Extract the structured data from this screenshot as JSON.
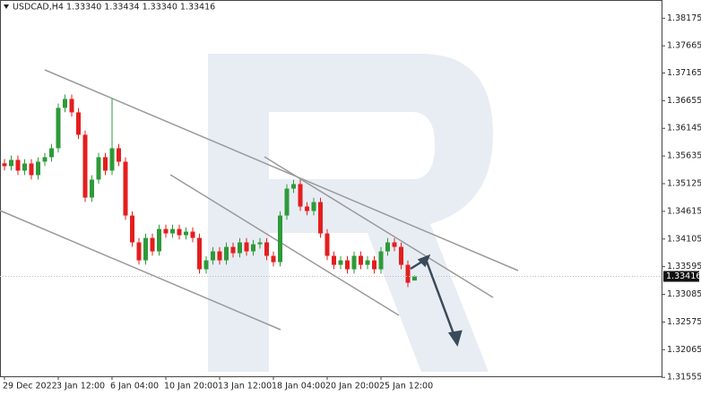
{
  "chart_data": {
    "type": "candlestick",
    "title": "USDCAD,H4  1.33340 1.33434 1.33340 1.33416",
    "categories": [
      "29 Dec 2022",
      null,
      null,
      null,
      null,
      null,
      null,
      null,
      "3 Jan 12:00",
      null,
      null,
      null,
      null,
      null,
      null,
      null,
      "6 Jan 04:00",
      null,
      null,
      null,
      null,
      null,
      null,
      null,
      "10 Jan 20:00",
      null,
      null,
      null,
      null,
      null,
      null,
      null,
      "13 Jan 12:00",
      null,
      null,
      null,
      null,
      null,
      null,
      null,
      "18 Jan 04:00",
      null,
      null,
      null,
      null,
      null,
      null,
      null,
      "20 Jan 20:00",
      null,
      null,
      null,
      null,
      null,
      null,
      null,
      "25 Jan 12:00",
      null,
      null,
      null,
      null,
      null
    ],
    "open": [
      1.355,
      1.35448,
      1.35563,
      1.35365,
      1.35497,
      1.35282,
      1.3553,
      1.35613,
      1.35778,
      1.36522,
      1.36687,
      1.36439,
      1.36026,
      1.34869,
      1.352,
      1.35613,
      1.35365,
      1.35778,
      1.3553,
      1.34538,
      1.34043,
      1.33712,
      1.34125,
      1.33877,
      1.3429,
      1.34208,
      1.3429,
      1.34175,
      1.34241,
      1.34125,
      1.33547,
      1.33712,
      1.33877,
      1.33712,
      1.3396,
      1.33844,
      1.34043,
      1.33877,
      1.34009,
      1.34043,
      1.33795,
      1.33679,
      1.34538,
      1.35034,
      1.35117,
      1.34704,
      1.34621,
      1.34786,
      1.34208,
      1.33795,
      1.33629,
      1.33712,
      1.33547,
      1.33795,
      1.33629,
      1.33712,
      1.33547,
      1.33877,
      1.34043,
      1.3396,
      1.33629,
      1.3334
    ],
    "high": [
      1.3558,
      1.35643,
      1.35643,
      1.35577,
      1.35577,
      1.3561,
      1.35693,
      1.35858,
      1.36602,
      1.36767,
      1.36767,
      1.36519,
      1.36106,
      1.3528,
      1.35693,
      1.35693,
      1.3669,
      1.35858,
      1.3561,
      1.34618,
      1.34123,
      1.34205,
      1.34205,
      1.3437,
      1.3437,
      1.3437,
      1.3437,
      1.34321,
      1.34321,
      1.34205,
      1.33792,
      1.33957,
      1.33957,
      1.3404,
      1.3404,
      1.34123,
      1.34123,
      1.34089,
      1.34123,
      1.34123,
      1.33875,
      1.34618,
      1.35114,
      1.35197,
      1.35197,
      1.34784,
      1.34866,
      1.34866,
      1.34288,
      1.33875,
      1.33792,
      1.33792,
      1.33875,
      1.33875,
      1.33792,
      1.33792,
      1.33957,
      1.34123,
      1.34123,
      1.3404,
      1.33709,
      1.33434
    ],
    "low": [
      1.35368,
      1.35368,
      1.35285,
      1.35285,
      1.35202,
      1.35202,
      1.3545,
      1.35533,
      1.35698,
      1.36442,
      1.36359,
      1.35946,
      1.34789,
      1.34789,
      1.3512,
      1.35285,
      1.35285,
      1.3545,
      1.34458,
      1.33963,
      1.33632,
      1.33632,
      1.33797,
      1.33797,
      1.34128,
      1.34128,
      1.34095,
      1.34095,
      1.34045,
      1.33467,
      1.33467,
      1.33632,
      1.33632,
      1.33632,
      1.33764,
      1.33764,
      1.33797,
      1.33797,
      1.33929,
      1.33715,
      1.33599,
      1.33599,
      1.34458,
      1.34954,
      1.34624,
      1.34541,
      1.34541,
      1.34128,
      1.33715,
      1.33549,
      1.33549,
      1.33467,
      1.33467,
      1.33549,
      1.33549,
      1.33467,
      1.33467,
      1.33797,
      1.3388,
      1.33549,
      1.33219,
      1.3334
    ],
    "close": [
      1.35448,
      1.35563,
      1.35365,
      1.35497,
      1.35282,
      1.3553,
      1.35613,
      1.35778,
      1.36522,
      1.36687,
      1.36439,
      1.36026,
      1.34869,
      1.352,
      1.35613,
      1.35365,
      1.35778,
      1.3553,
      1.34538,
      1.34043,
      1.33712,
      1.34125,
      1.33877,
      1.3429,
      1.34208,
      1.3429,
      1.34175,
      1.34241,
      1.34125,
      1.33547,
      1.33712,
      1.33877,
      1.33712,
      1.3396,
      1.33844,
      1.34043,
      1.33877,
      1.34009,
      1.34043,
      1.33795,
      1.33679,
      1.34538,
      1.35034,
      1.35117,
      1.34704,
      1.34621,
      1.34786,
      1.34208,
      1.33795,
      1.33629,
      1.33712,
      1.33547,
      1.33795,
      1.33629,
      1.33712,
      1.33547,
      1.33877,
      1.34043,
      1.3396,
      1.33629,
      1.33299,
      1.33416
    ],
    "up_color": "#2e9a3a",
    "down_color": "#e41e1e",
    "ylim": [
      1.3141,
      1.3851
    ],
    "yticks": [
      1.38175,
      1.37665,
      1.37165,
      1.36655,
      1.36145,
      1.35635,
      1.35125,
      1.34615,
      1.34105,
      1.33595,
      1.33085,
      1.32575,
      1.32065,
      1.31555
    ],
    "last_price": 1.33416,
    "grid": false
  }
}
